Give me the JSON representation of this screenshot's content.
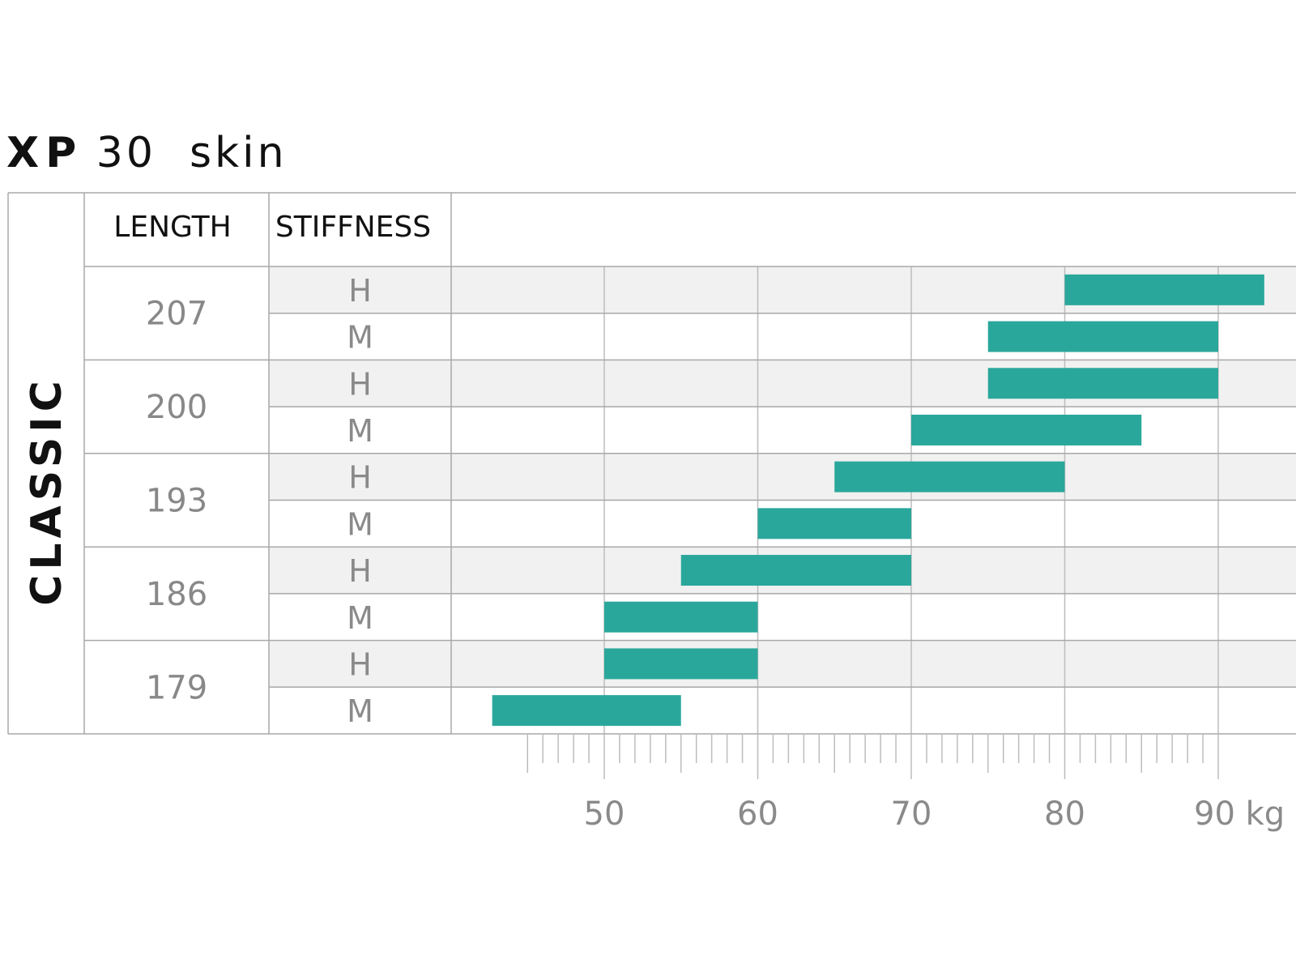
{
  "title": {
    "bold": "XP",
    "rest": "30  skin"
  },
  "section_label": "CLASSIC",
  "headers": {
    "length": "LENGTH",
    "stiffness": "STIFFNESS"
  },
  "colors": {
    "bar": "#2aa79b",
    "shade": "#f1f1f1",
    "grid": "#bdbdbd",
    "border": "#a8a8a8"
  },
  "chart_data": {
    "type": "bar",
    "orientation": "horizontal-range",
    "xlim": [
      40,
      95
    ],
    "x_ticks": [
      50,
      60,
      70,
      80,
      90
    ],
    "x_tick_labels": [
      "50",
      "60",
      "70",
      "80",
      "90 kg"
    ],
    "unit": "kg",
    "minor_tick_step": 1,
    "minor_tick_start": 45,
    "groups": [
      {
        "length": "207",
        "rows": [
          {
            "stiffness": "H",
            "range": [
              80,
              93
            ]
          },
          {
            "stiffness": "M",
            "range": [
              75,
              90
            ]
          }
        ]
      },
      {
        "length": "200",
        "rows": [
          {
            "stiffness": "H",
            "range": [
              75,
              90
            ]
          },
          {
            "stiffness": "M",
            "range": [
              70,
              85
            ]
          }
        ]
      },
      {
        "length": "193",
        "rows": [
          {
            "stiffness": "H",
            "range": [
              65,
              80
            ]
          },
          {
            "stiffness": "M",
            "range": [
              60,
              70
            ]
          }
        ]
      },
      {
        "length": "186",
        "rows": [
          {
            "stiffness": "H",
            "range": [
              55,
              70
            ]
          },
          {
            "stiffness": "M",
            "range": [
              50,
              60
            ]
          }
        ]
      },
      {
        "length": "179",
        "rows": [
          {
            "stiffness": "H",
            "range": [
              50,
              60
            ]
          },
          {
            "stiffness": "M",
            "range": [
              42.7,
              55
            ]
          }
        ]
      }
    ]
  }
}
